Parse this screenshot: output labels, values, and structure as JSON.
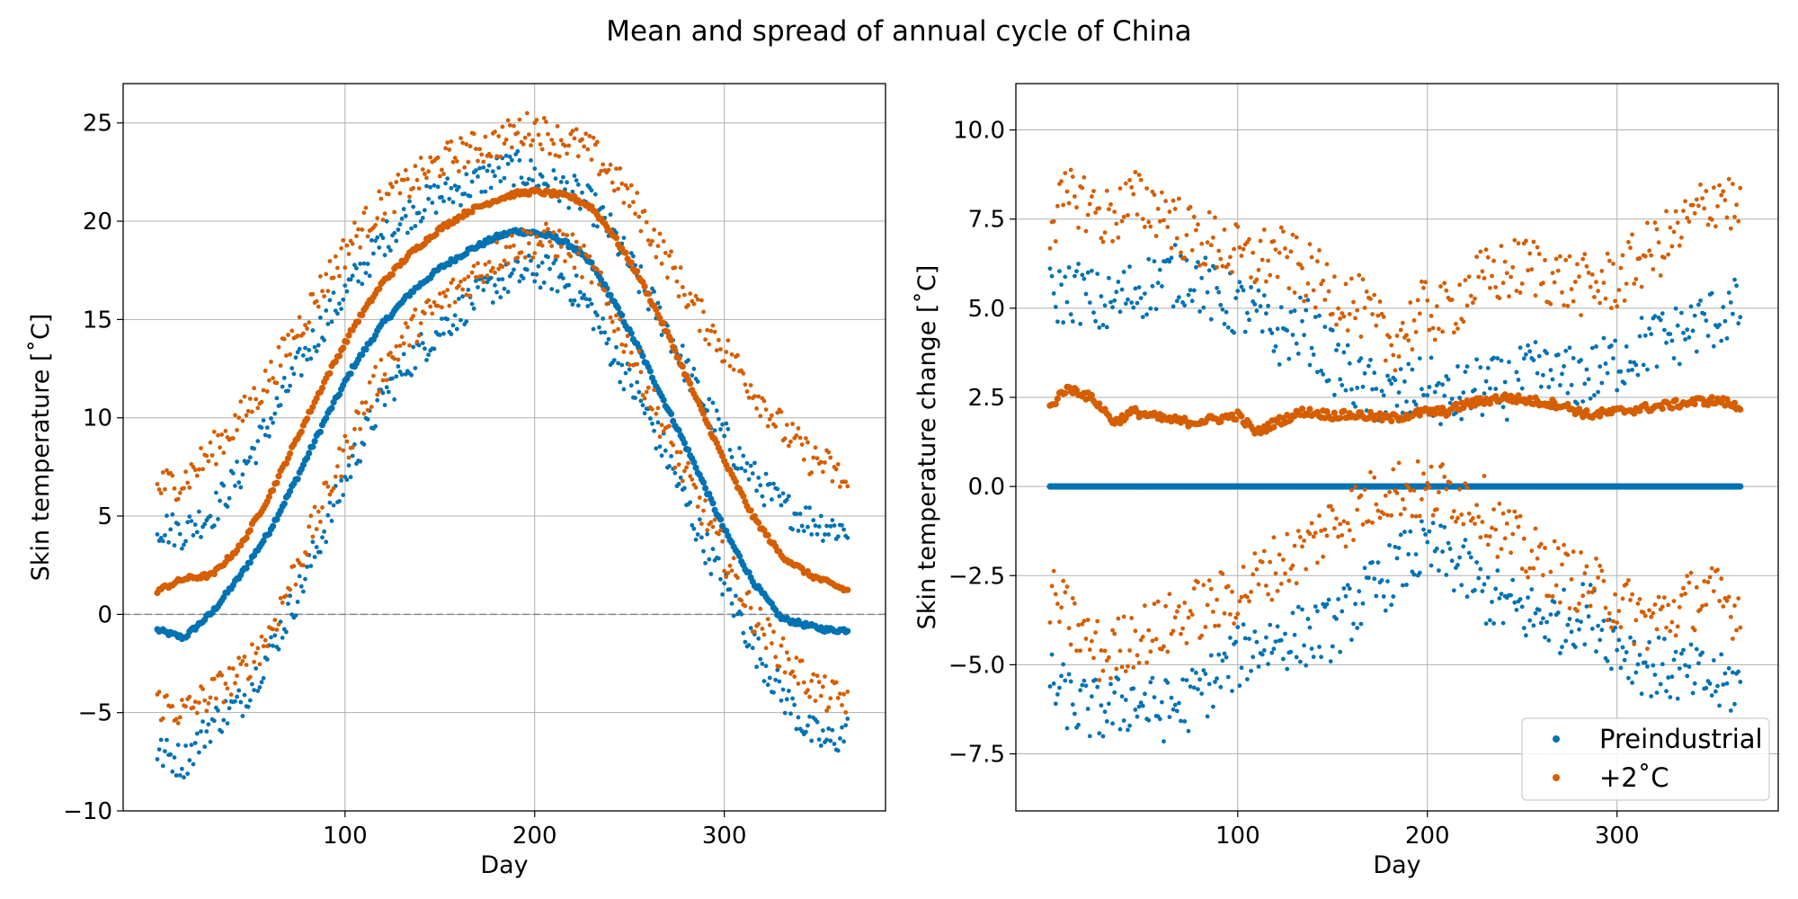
{
  "figure_title": "Mean and spread of annual cycle of China",
  "colors": {
    "preindustrial": "#0072b2",
    "warm": "#d55e00"
  },
  "legend": {
    "placement": "lower-right",
    "entries": [
      "Preindustrial",
      "+2˚C"
    ]
  },
  "chart_data": [
    {
      "type": "scatter",
      "xlabel": "Day",
      "ylabel": "Skin temperature [˚C]",
      "xlim": [
        -17,
        385
      ],
      "ylim": [
        -10,
        27
      ],
      "xticks": [
        100,
        200,
        300
      ],
      "yticks": [
        -10,
        -5,
        0,
        5,
        10,
        15,
        20,
        25
      ],
      "grid": true,
      "hline": 0,
      "series": [
        {
          "name": "Preindustrial",
          "color_key": "preindustrial",
          "role": "mean",
          "x": [
            1,
            15,
            30,
            45,
            60,
            75,
            90,
            105,
            120,
            135,
            150,
            165,
            180,
            190,
            200,
            210,
            220,
            230,
            240,
            255,
            270,
            285,
            300,
            315,
            330,
            345,
            355,
            365
          ],
          "y": [
            -0.8,
            -1.2,
            0.1,
            2.0,
            4.2,
            7.0,
            10.0,
            12.7,
            14.8,
            16.4,
            17.6,
            18.5,
            19.2,
            19.5,
            19.4,
            19.2,
            18.7,
            17.8,
            16.2,
            13.5,
            10.5,
            7.5,
            4.3,
            1.7,
            -0.2,
            -0.6,
            -0.8,
            -0.8
          ]
        },
        {
          "name": "Preindustrial",
          "color_key": "preindustrial",
          "role": "upper",
          "x": [
            1,
            15,
            30,
            45,
            60,
            75,
            90,
            105,
            120,
            135,
            150,
            165,
            180,
            190,
            200,
            210,
            220,
            230,
            240,
            255,
            270,
            285,
            300,
            315,
            330,
            345,
            355,
            365
          ],
          "y": [
            4.5,
            4.2,
            5.2,
            7.2,
            9.7,
            12.5,
            15.0,
            17.0,
            19.0,
            20.5,
            21.3,
            21.8,
            22.5,
            22.7,
            22.3,
            21.8,
            21.5,
            20.8,
            19.5,
            17.0,
            14.5,
            11.5,
            9.0,
            7.0,
            5.5,
            4.8,
            4.5,
            4.3
          ]
        },
        {
          "name": "Preindustrial",
          "color_key": "preindustrial",
          "role": "lower",
          "x": [
            1,
            15,
            30,
            45,
            60,
            75,
            90,
            105,
            120,
            135,
            150,
            165,
            180,
            190,
            200,
            210,
            220,
            230,
            240,
            255,
            270,
            285,
            300,
            315,
            330,
            345,
            355,
            365
          ],
          "y": [
            -7.0,
            -7.5,
            -5.5,
            -4.5,
            -2.0,
            1.0,
            4.5,
            8.0,
            11.0,
            13.0,
            14.5,
            15.8,
            16.8,
            17.2,
            17.5,
            17.3,
            16.6,
            15.5,
            13.5,
            11.0,
            8.0,
            4.5,
            1.5,
            -1.5,
            -4.0,
            -6.0,
            -6.5,
            -6.0
          ]
        },
        {
          "name": "+2˚C",
          "color_key": "warm",
          "role": "mean",
          "x": [
            1,
            15,
            30,
            45,
            60,
            75,
            90,
            105,
            120,
            135,
            150,
            165,
            180,
            190,
            200,
            210,
            220,
            230,
            240,
            255,
            270,
            285,
            300,
            315,
            330,
            345,
            355,
            365
          ],
          "y": [
            1.2,
            1.8,
            2.0,
            3.5,
            6.0,
            9.0,
            12.0,
            14.7,
            16.9,
            18.4,
            19.6,
            20.5,
            21.1,
            21.4,
            21.5,
            21.4,
            21.2,
            20.7,
            19.5,
            17.2,
            14.3,
            11.0,
            7.8,
            5.0,
            3.0,
            2.0,
            1.6,
            1.2
          ]
        },
        {
          "name": "+2˚C",
          "color_key": "warm",
          "role": "upper",
          "x": [
            1,
            15,
            30,
            45,
            60,
            75,
            90,
            105,
            120,
            135,
            150,
            165,
            180,
            190,
            200,
            210,
            220,
            230,
            240,
            255,
            270,
            285,
            300,
            315,
            330,
            345,
            355,
            365
          ],
          "y": [
            6.5,
            6.8,
            8.3,
            10.0,
            12.0,
            14.5,
            17.0,
            19.2,
            20.9,
            22.0,
            23.0,
            23.6,
            24.0,
            24.5,
            24.8,
            24.2,
            24.0,
            23.5,
            22.5,
            20.5,
            18.0,
            15.5,
            13.5,
            11.5,
            9.5,
            8.0,
            7.5,
            6.5
          ]
        },
        {
          "name": "+2˚C",
          "color_key": "warm",
          "role": "lower",
          "x": [
            1,
            15,
            30,
            45,
            60,
            75,
            90,
            105,
            120,
            135,
            150,
            165,
            180,
            190,
            200,
            210,
            220,
            230,
            240,
            255,
            270,
            285,
            300,
            315,
            330,
            345,
            355,
            365
          ],
          "y": [
            -4.5,
            -5.0,
            -4.0,
            -3.0,
            -1.0,
            2.5,
            6.0,
            9.5,
            12.5,
            14.5,
            15.8,
            17.0,
            18.2,
            18.8,
            19.0,
            19.0,
            18.5,
            17.5,
            15.5,
            12.5,
            9.0,
            6.0,
            3.0,
            0.0,
            -2.0,
            -3.5,
            -4.2,
            -4.3
          ]
        }
      ]
    },
    {
      "type": "scatter",
      "xlabel": "Day",
      "ylabel": "Skin temperature change [˚C]",
      "xlim": [
        -17,
        385
      ],
      "ylim": [
        -9.1,
        11.3
      ],
      "xticks": [
        100,
        200,
        300
      ],
      "yticks": [
        -7.5,
        -5.0,
        -2.5,
        0.0,
        2.5,
        5.0,
        7.5,
        10.0
      ],
      "grid": true,
      "series": [
        {
          "name": "Preindustrial",
          "color_key": "preindustrial",
          "role": "mean",
          "x": [
            1,
            365
          ],
          "y": [
            0.0,
            0.0
          ]
        },
        {
          "name": "Preindustrial",
          "color_key": "preindustrial",
          "role": "upper",
          "x": [
            1,
            15,
            30,
            45,
            60,
            75,
            90,
            105,
            120,
            135,
            150,
            165,
            180,
            190,
            200,
            210,
            220,
            230,
            240,
            255,
            270,
            285,
            300,
            315,
            330,
            345,
            355,
            365
          ],
          "y": [
            5.3,
            5.5,
            5.0,
            5.5,
            5.8,
            6.0,
            5.2,
            5.0,
            4.2,
            4.5,
            3.5,
            2.8,
            2.5,
            2.6,
            2.8,
            2.4,
            2.6,
            2.8,
            2.7,
            3.2,
            3.0,
            3.1,
            3.5,
            4.0,
            4.2,
            4.6,
            4.8,
            5.0
          ]
        },
        {
          "name": "Preindustrial",
          "color_key": "preindustrial",
          "role": "lower",
          "x": [
            1,
            15,
            30,
            45,
            60,
            75,
            90,
            105,
            120,
            135,
            150,
            165,
            180,
            190,
            200,
            210,
            220,
            230,
            240,
            255,
            270,
            285,
            300,
            315,
            330,
            345,
            355,
            365
          ],
          "y": [
            -5.5,
            -6.2,
            -6.3,
            -6.0,
            -6.3,
            -6.0,
            -5.3,
            -4.6,
            -4.3,
            -4.2,
            -4.0,
            -3.2,
            -2.5,
            -2.0,
            -1.8,
            -2.0,
            -2.4,
            -3.0,
            -3.3,
            -3.6,
            -3.8,
            -3.5,
            -4.4,
            -5.0,
            -5.2,
            -5.4,
            -5.6,
            -5.5
          ]
        },
        {
          "name": "+2˚C",
          "color_key": "warm",
          "role": "mean",
          "x": [
            1,
            8,
            15,
            25,
            35,
            45,
            60,
            75,
            90,
            100,
            110,
            120,
            135,
            150,
            165,
            180,
            190,
            200,
            210,
            220,
            230,
            240,
            255,
            270,
            285,
            300,
            315,
            330,
            345,
            355,
            365
          ],
          "y": [
            2.2,
            2.7,
            2.7,
            2.4,
            1.8,
            2.1,
            1.9,
            1.8,
            1.9,
            2.0,
            1.5,
            1.8,
            2.1,
            2.0,
            2.0,
            1.9,
            2.0,
            2.1,
            2.1,
            2.3,
            2.4,
            2.5,
            2.4,
            2.3,
            2.0,
            2.1,
            2.2,
            2.3,
            2.4,
            2.4,
            2.2
          ]
        },
        {
          "name": "+2˚C",
          "color_key": "warm",
          "role": "upper",
          "x": [
            1,
            15,
            30,
            45,
            60,
            75,
            90,
            105,
            120,
            135,
            150,
            165,
            180,
            190,
            200,
            210,
            220,
            230,
            240,
            255,
            270,
            285,
            300,
            315,
            330,
            345,
            355,
            365
          ],
          "y": [
            7.5,
            8.2,
            7.5,
            8.0,
            7.8,
            7.0,
            6.8,
            6.3,
            6.5,
            6.0,
            5.5,
            5.0,
            4.0,
            4.5,
            5.0,
            4.8,
            5.5,
            5.8,
            6.0,
            6.2,
            5.8,
            5.6,
            5.8,
            6.5,
            7.0,
            7.8,
            8.3,
            7.5
          ]
        },
        {
          "name": "+2˚C",
          "color_key": "warm",
          "role": "lower",
          "x": [
            1,
            15,
            30,
            45,
            60,
            75,
            90,
            105,
            120,
            135,
            150,
            165,
            180,
            190,
            200,
            210,
            220,
            230,
            240,
            255,
            270,
            285,
            300,
            315,
            330,
            345,
            355,
            365
          ],
          "y": [
            -3.0,
            -4.0,
            -4.8,
            -4.2,
            -4.0,
            -3.5,
            -3.3,
            -2.8,
            -2.2,
            -1.8,
            -1.0,
            -0.6,
            0.0,
            -0.1,
            -0.2,
            -0.1,
            -0.3,
            -0.6,
            -1.3,
            -2.0,
            -2.4,
            -2.8,
            -3.2,
            -3.8,
            -3.5,
            -3.0,
            -3.2,
            -3.5
          ]
        }
      ]
    }
  ]
}
